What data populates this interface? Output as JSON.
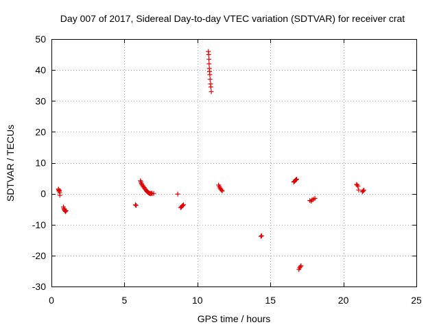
{
  "chart_data": {
    "type": "scatter",
    "title": "Day 007 of 2017, Sidereal Day-to-day VTEC variation (SDTVAR) for receiver crat",
    "xlabel": "GPS time / hours",
    "ylabel": "SDTVAR / TECUs",
    "xlim": [
      0,
      25
    ],
    "ylim": [
      -30,
      50
    ],
    "xticks": [
      0,
      5,
      10,
      15,
      20,
      25
    ],
    "yticks": [
      -30,
      -20,
      -10,
      0,
      10,
      20,
      30,
      40,
      50
    ],
    "xtick_labels": [
      "0",
      "5",
      "10",
      "15",
      "20",
      "25"
    ],
    "ytick_labels": [
      "-30",
      "-20",
      "-10",
      "0",
      "10",
      "20",
      "30",
      "40",
      "50"
    ],
    "grid": true,
    "marker": "+",
    "color": "#e00000",
    "series": [
      {
        "name": "SDTVAR",
        "points": [
          [
            0.48,
            1.5
          ],
          [
            0.5,
            1.2
          ],
          [
            0.52,
            0.8
          ],
          [
            0.55,
            1.0
          ],
          [
            0.57,
            0.3
          ],
          [
            0.58,
            -0.5
          ],
          [
            0.82,
            -4.3
          ],
          [
            0.85,
            -4.8
          ],
          [
            0.88,
            -5.0
          ],
          [
            0.9,
            -5.3
          ],
          [
            0.93,
            -5.6
          ],
          [
            0.97,
            -5.8
          ],
          [
            1.0,
            -5.5
          ],
          [
            5.75,
            -3.6
          ],
          [
            5.8,
            -3.8
          ],
          [
            6.1,
            4.2
          ],
          [
            6.13,
            3.8
          ],
          [
            6.16,
            3.3
          ],
          [
            6.2,
            3.0
          ],
          [
            6.25,
            2.6
          ],
          [
            6.3,
            2.3
          ],
          [
            6.35,
            2.0
          ],
          [
            6.4,
            1.6
          ],
          [
            6.45,
            1.3
          ],
          [
            6.5,
            1.0
          ],
          [
            6.55,
            0.7
          ],
          [
            6.6,
            0.5
          ],
          [
            6.65,
            0.3
          ],
          [
            6.7,
            0.2
          ],
          [
            6.75,
            0.1
          ],
          [
            6.8,
            0.0
          ],
          [
            6.85,
            0.2
          ],
          [
            6.9,
            0.0
          ],
          [
            7.0,
            0.1
          ],
          [
            8.65,
            -0.1
          ],
          [
            8.85,
            -4.5
          ],
          [
            8.9,
            -4.3
          ],
          [
            8.95,
            -4.0
          ],
          [
            9.0,
            -3.8
          ],
          [
            9.05,
            -3.6
          ],
          [
            10.75,
            46.0
          ],
          [
            10.77,
            45.0
          ],
          [
            10.79,
            43.5
          ],
          [
            10.8,
            42.0
          ],
          [
            10.82,
            40.5
          ],
          [
            10.83,
            39.5
          ],
          [
            10.85,
            38.5
          ],
          [
            10.87,
            37.0
          ],
          [
            10.9,
            35.5
          ],
          [
            10.92,
            34.5
          ],
          [
            10.95,
            33.0
          ],
          [
            11.45,
            2.8
          ],
          [
            11.5,
            2.3
          ],
          [
            11.55,
            1.9
          ],
          [
            11.6,
            1.5
          ],
          [
            11.65,
            1.2
          ],
          [
            11.7,
            0.9
          ],
          [
            14.35,
            -13.8
          ],
          [
            14.4,
            -13.6
          ],
          [
            16.6,
            3.8
          ],
          [
            16.65,
            4.0
          ],
          [
            16.7,
            4.3
          ],
          [
            16.75,
            4.5
          ],
          [
            16.8,
            4.7
          ],
          [
            16.95,
            -24.5
          ],
          [
            17.0,
            -24.0
          ],
          [
            17.05,
            -23.6
          ],
          [
            17.1,
            -23.3
          ],
          [
            17.7,
            -2.2
          ],
          [
            17.8,
            -2.4
          ],
          [
            17.85,
            -2.0
          ],
          [
            17.95,
            -1.8
          ],
          [
            18.05,
            -1.5
          ],
          [
            20.9,
            3.0
          ],
          [
            20.95,
            2.8
          ],
          [
            21.0,
            2.4
          ],
          [
            21.05,
            1.2
          ],
          [
            21.3,
            0.6
          ],
          [
            21.35,
            0.9
          ],
          [
            21.4,
            1.2
          ]
        ]
      }
    ]
  }
}
